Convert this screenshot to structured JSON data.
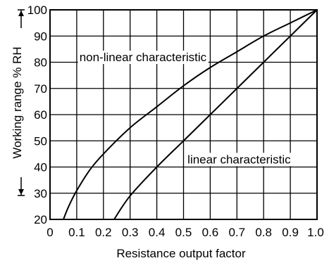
{
  "chart_data": {
    "type": "line",
    "xlabel": "Resistance output factor",
    "ylabel": "Working range % RH",
    "xlim": [
      0,
      1.0
    ],
    "ylim": [
      20,
      100
    ],
    "x_ticks": [
      "0",
      "0.1",
      "0.2",
      "0.3",
      "0.4",
      "0.5",
      "0.6",
      "0.7",
      "0.8",
      "0.9",
      "1.0"
    ],
    "y_ticks": [
      "20",
      "30",
      "40",
      "50",
      "60",
      "70",
      "80",
      "90",
      "100"
    ],
    "grid": true,
    "series": [
      {
        "name": "non-linear characteristic",
        "x": [
          0.05,
          0.07,
          0.1,
          0.15,
          0.2,
          0.3,
          0.4,
          0.5,
          0.6,
          0.7,
          0.8,
          0.9,
          1.0
        ],
        "y": [
          20,
          25,
          31,
          39,
          45,
          55,
          63,
          71,
          78,
          84,
          90,
          95,
          100
        ]
      },
      {
        "name": "linear characteristic",
        "x": [
          0.24,
          0.3,
          0.4,
          0.5,
          0.6,
          0.7,
          0.8,
          0.9,
          1.0
        ],
        "y": [
          20,
          29,
          40,
          50,
          60,
          70,
          80,
          90,
          100
        ]
      }
    ],
    "annotations": [
      {
        "text": "non-linear characteristic",
        "x": 0.11,
        "y": 82
      },
      {
        "text": "linear characteristic",
        "x": 0.515,
        "y": 43
      }
    ]
  }
}
